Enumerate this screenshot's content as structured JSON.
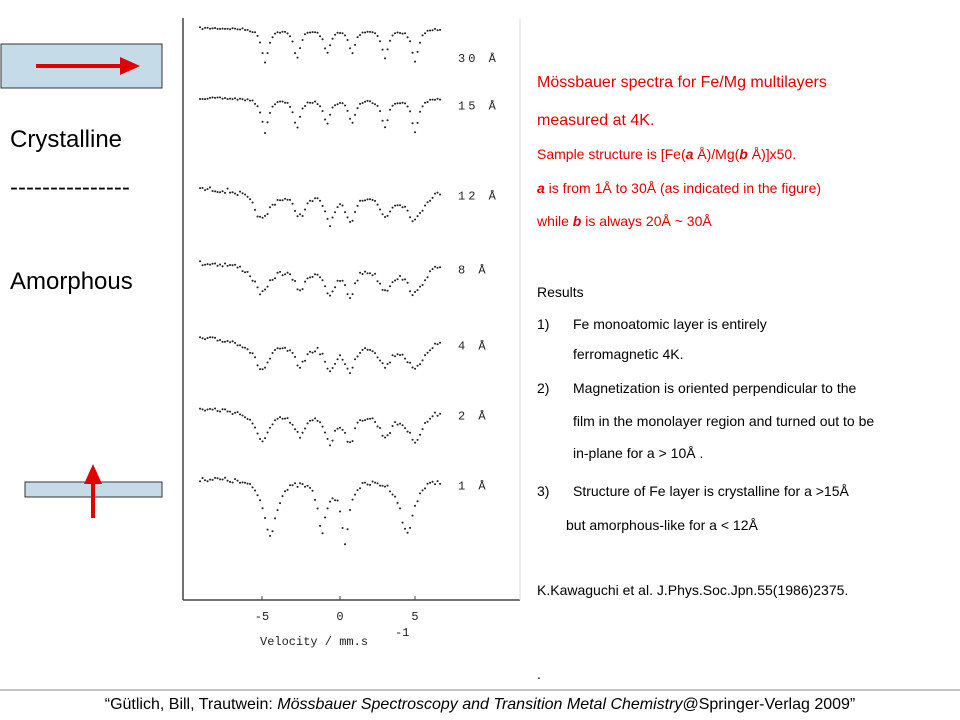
{
  "left": {
    "top_label": "Crystalline",
    "divider": "---------------",
    "bottom_label": "Amorphous"
  },
  "figure": {
    "spectra_labels": [
      "30 Å",
      "15 Å",
      "12 Å",
      "8 Å",
      "4 Å",
      "2 Å",
      "1 Å"
    ],
    "x_ticks": [
      "-5",
      "0",
      "5"
    ],
    "x_label": "Velocity / mm.s",
    "x_label_sup": "-1"
  },
  "text": {
    "title_1": "Mössbauer spectra for Fe/Mg multilayers",
    "title_2": "measured at 4K.",
    "structure": [
      "Sample structure is [Fe(",
      "a",
      " Å)/Mg(",
      "b",
      " Å)]x50."
    ],
    "range": [
      "a",
      " is from 1Å to 30Å (as indicated in the figure)"
    ],
    "thickness": [
      "while ",
      "b",
      " is always 20Å ~ 30Å"
    ],
    "results_heading": "Results",
    "results": [
      {
        "num": "1)",
        "lines": [
          "Fe monoatomic layer is entirely",
          "ferromagnetic 4K."
        ]
      },
      {
        "num": "2)",
        "lines": [
          "Magnetization is oriented perpendicular to the",
          "film in the monolayer region and turned out to be",
          "in-plane for a > 10Å ."
        ]
      },
      {
        "num": "3)",
        "lines": [
          "Structure of Fe layer is crystalline for a >15Å",
          "but amorphous-like for a < 12Å"
        ]
      }
    ],
    "reference": "K.Kawaguchi et al. J.Phys.Soc.Jpn.55(1986)2375.",
    "dot": "."
  },
  "footer": [
    "“Gütlich, Bill, Trautwein: ",
    "Mössbauer Spectroscopy and Transition Metal Chemistry",
    "@Springer-Verlag 2009”"
  ]
}
